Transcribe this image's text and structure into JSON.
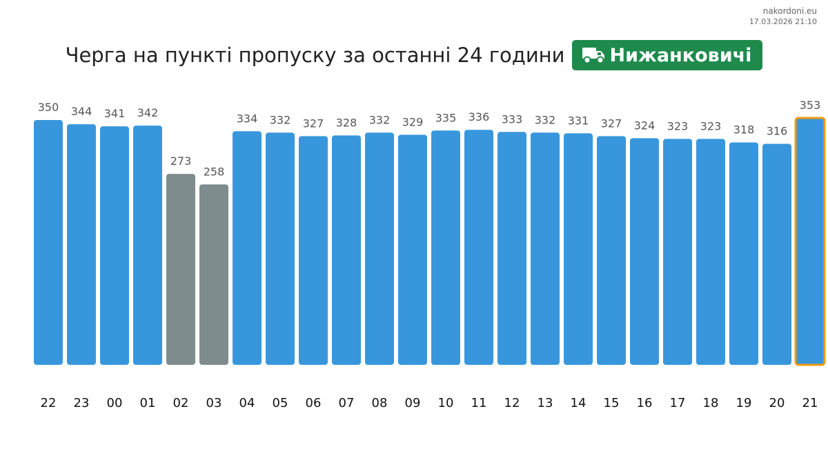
{
  "source": {
    "site": "nakordoni.eu",
    "timestamp": "17.03.2026 21:10"
  },
  "header": {
    "title": "Черга на пункті пропуску за останні 24 години",
    "checkpoint": "Нижанковичі",
    "checkpoint_icon": "truck-icon"
  },
  "colors": {
    "bar": "#3897dc",
    "bar_low": "#7f8c8d",
    "current_outline": "#f39c12",
    "badge": "#1e8a4c"
  },
  "chart_data": {
    "type": "bar",
    "title": "",
    "xlabel": "",
    "ylabel": "",
    "ylim": [
      0,
      353
    ],
    "grid": false,
    "categories": [
      "22",
      "23",
      "00",
      "01",
      "02",
      "03",
      "04",
      "05",
      "06",
      "07",
      "08",
      "09",
      "10",
      "11",
      "12",
      "13",
      "14",
      "15",
      "16",
      "17",
      "18",
      "19",
      "20",
      "21"
    ],
    "values": [
      350,
      344,
      341,
      342,
      273,
      258,
      334,
      332,
      327,
      328,
      332,
      329,
      335,
      336,
      333,
      332,
      331,
      327,
      324,
      323,
      323,
      318,
      316,
      353
    ],
    "low_categories": [
      "02",
      "03"
    ],
    "current_category": "21"
  }
}
